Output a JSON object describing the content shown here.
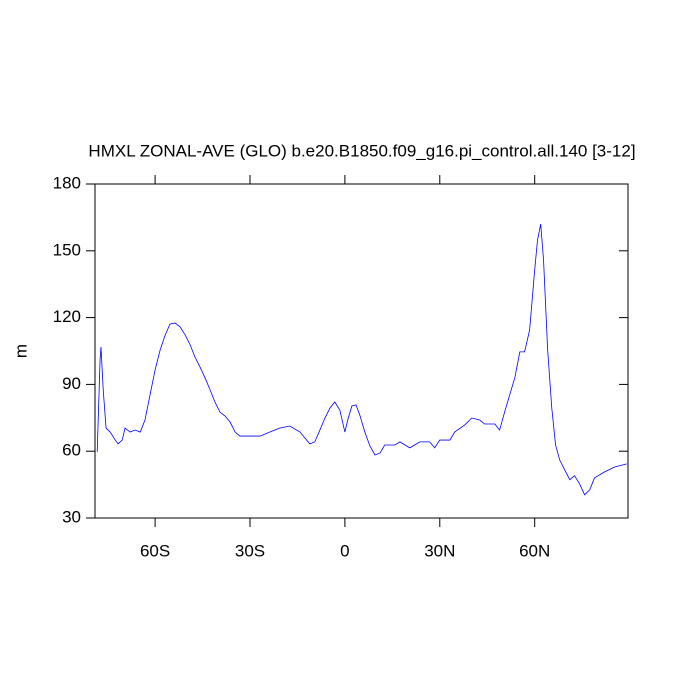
{
  "chart_data": {
    "type": "line",
    "title": "HMXL ZONAL-AVE (GLO) b.e20.B1850.f09_g16.pi_control.all.140 [3-12]",
    "y_label": "m",
    "xlim": [
      -79,
      89.5
    ],
    "ylim": [
      30,
      180
    ],
    "xticks": [
      {
        "value": -60,
        "label": "60S"
      },
      {
        "value": -30,
        "label": "30S"
      },
      {
        "value": 0,
        "label": "0"
      },
      {
        "value": 30,
        "label": "30N"
      },
      {
        "value": 60,
        "label": "60N"
      }
    ],
    "yticks": [
      30,
      60,
      90,
      120,
      150,
      180
    ],
    "x": [
      -78.3,
      -77.4,
      -77.1,
      -76.4,
      -75.5,
      -74.2,
      -72.6,
      -71.7,
      -70.4,
      -69.5,
      -67.9,
      -66.3,
      -64.7,
      -63.2,
      -61.6,
      -60,
      -58.4,
      -56.8,
      -55.3,
      -53.7,
      -52.1,
      -50.5,
      -48.9,
      -47.4,
      -45.8,
      -44.2,
      -42.6,
      -41.1,
      -39.5,
      -37.9,
      -36.3,
      -34.7,
      -33.2,
      -30,
      -26.8,
      -23.7,
      -20.5,
      -17.4,
      -14.2,
      -11.1,
      -9.5,
      -7.9,
      -6.3,
      -4.7,
      -3.2,
      -1.6,
      0,
      0.9,
      2.2,
      3.5,
      4.7,
      6.3,
      7.9,
      9.5,
      11.1,
      12.6,
      15.8,
      17.4,
      20.5,
      23.7,
      26.8,
      28.4,
      30,
      33.2,
      34.7,
      37.9,
      40.1,
      42.6,
      44.2,
      47.4,
      48.9,
      50.5,
      52.1,
      53.7,
      55.3,
      56.8,
      58.4,
      60,
      60.9,
      61.9,
      62.8,
      64.1,
      65.4,
      66.6,
      67.9,
      69.5,
      71.1,
      72.6,
      74.2,
      75.8,
      77.4,
      78.9,
      82.1,
      85.3,
      89.1
    ],
    "series": [
      {
        "color": "#0000ff",
        "values": [
          59.7,
          101,
          106.8,
          87.5,
          70.4,
          68.6,
          65,
          63.3,
          65,
          70.4,
          68.6,
          69.5,
          68.6,
          74,
          85.3,
          96.5,
          105.5,
          112.2,
          117.1,
          117.6,
          115.8,
          112.2,
          107.7,
          102.3,
          97.8,
          92.9,
          87.5,
          82.1,
          77.6,
          75.8,
          73.1,
          68.6,
          66.8,
          66.8,
          66.8,
          68.6,
          70.4,
          71.3,
          68.6,
          63.3,
          64.2,
          69.5,
          74.9,
          79.4,
          82.1,
          78.5,
          68.6,
          74,
          80.3,
          80.8,
          76.3,
          68.6,
          62.4,
          58.3,
          59.2,
          62.8,
          62.8,
          64.2,
          61.5,
          64.2,
          64.2,
          61.5,
          65,
          65,
          68.6,
          71.8,
          74.9,
          74,
          72.2,
          72.2,
          69.5,
          77.6,
          85.3,
          92.9,
          104.6,
          104.6,
          114.4,
          141.4,
          154.9,
          162,
          145.9,
          105.5,
          79.4,
          62.8,
          56.1,
          51.6,
          47.2,
          49,
          45.3,
          40.4,
          42.7,
          48,
          50.7,
          52.9,
          54.3
        ]
      }
    ]
  }
}
